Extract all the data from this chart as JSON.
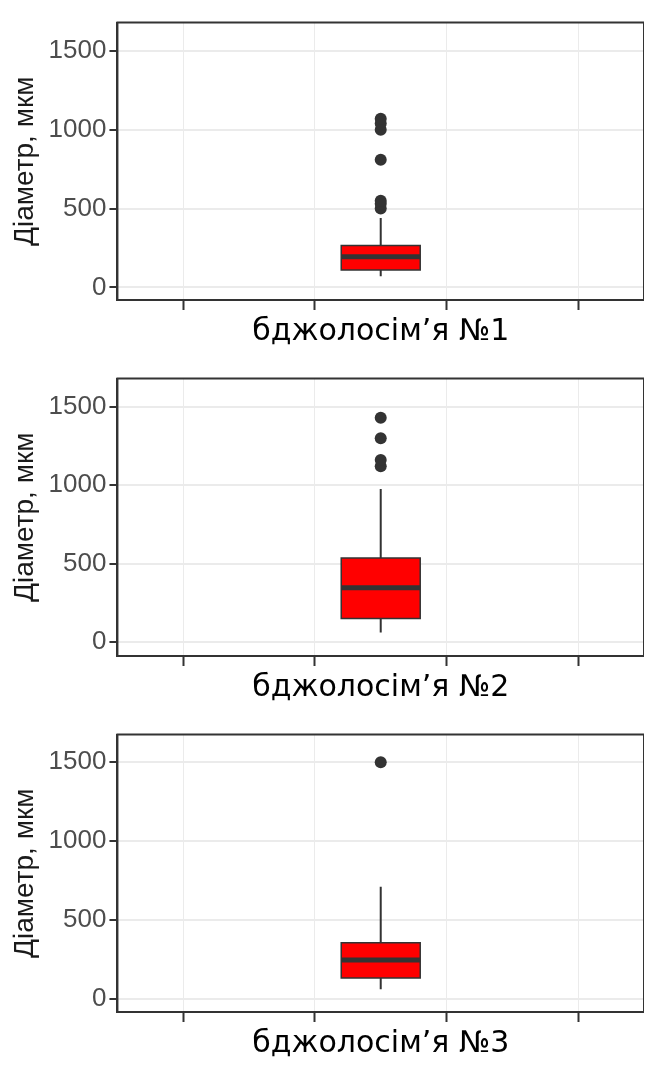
{
  "chart_data": [
    {
      "type": "box",
      "categories": [
        null,
        null,
        null,
        null,
        null
      ],
      "xlabel": "бджолосім’я №1",
      "ylabel": "Діаметр, мкм",
      "ylim": [
        -80,
        1680
      ],
      "yticks": [
        0,
        500,
        1000,
        1500
      ],
      "grid": true,
      "tick_labels": "y",
      "series": [
        {
          "color": "#ff0000",
          "boxes": [
            null,
            null,
            {
              "low": 70,
              "q1": 110,
              "median": 195,
              "q3": 265,
              "high": 440,
              "outliers": [
                500,
                530,
                550,
                810,
                1000,
                1040,
                1070
              ]
            },
            null,
            null
          ]
        }
      ]
    },
    {
      "type": "box",
      "categories": [
        null,
        null,
        null,
        null,
        null
      ],
      "xlabel": "бджолосім’я №2",
      "ylabel": "Діаметр, мкм",
      "ylim": [
        -90,
        1680
      ],
      "yticks": [
        0,
        500,
        1000,
        1500
      ],
      "grid": true,
      "tick_labels": "y",
      "series": [
        {
          "color": "#ff0000",
          "boxes": [
            null,
            null,
            {
              "low": 60,
              "q1": 150,
              "median": 345,
              "q3": 535,
              "high": 975,
              "outliers": [
                1120,
                1160,
                1300,
                1430
              ]
            },
            null,
            null
          ]
        }
      ]
    },
    {
      "type": "box",
      "categories": [
        null,
        null,
        null,
        null,
        null
      ],
      "xlabel": "бджолосім’я №3",
      "ylabel": "Діаметр, мкм",
      "ylim": [
        -85,
        1675
      ],
      "yticks": [
        0,
        500,
        1000,
        1500
      ],
      "grid": true,
      "tick_labels": "y",
      "series": [
        {
          "color": "#ff0000",
          "boxes": [
            null,
            null,
            {
              "low": 60,
              "q1": 130,
              "median": 245,
              "q3": 355,
              "high": 710,
              "outliers": [
                1500
              ]
            },
            null,
            null
          ]
        }
      ]
    }
  ]
}
